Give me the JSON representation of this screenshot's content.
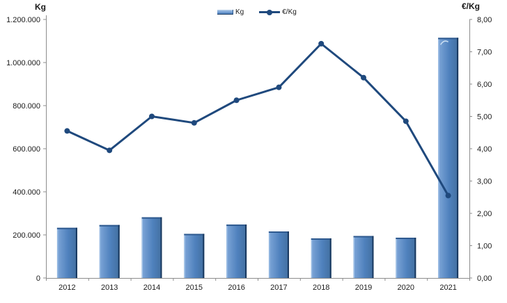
{
  "chart_data": {
    "type": "bar+line",
    "categories": [
      "2012",
      "2013",
      "2014",
      "2015",
      "2016",
      "2017",
      "2018",
      "2019",
      "2020",
      "2021"
    ],
    "series": [
      {
        "name": "Kg",
        "type": "bar",
        "axis": "left",
        "values": [
          233000,
          246000,
          282000,
          205000,
          248000,
          216000,
          184000,
          195000,
          187000,
          1115000
        ]
      },
      {
        "name": "€/Kg",
        "type": "line",
        "axis": "right",
        "values": [
          4.55,
          3.95,
          5.0,
          4.8,
          5.5,
          5.9,
          7.25,
          6.2,
          4.85,
          2.55
        ]
      }
    ],
    "left_axis": {
      "title": "Kg",
      "min": 0,
      "max": 1200000,
      "step": 200000,
      "tick_labels": [
        "0",
        "200.000",
        "400.000",
        "600.000",
        "800.000",
        "1.000.000",
        "1.200.000"
      ]
    },
    "right_axis": {
      "title": "€/Kg",
      "min": 0,
      "max": 8,
      "step": 1,
      "tick_labels": [
        "0,00",
        "1,00",
        "2,00",
        "3,00",
        "4,00",
        "5,00",
        "6,00",
        "7,00",
        "8,00"
      ]
    },
    "legend": {
      "position": "top-center",
      "items": [
        {
          "label": "Kg",
          "swatch": "bar"
        },
        {
          "label": "€/Kg",
          "swatch": "line-marker"
        }
      ]
    },
    "grid": false,
    "colors": {
      "bar_fill": "#4f81bd",
      "bar_fill_light": "#7ea6d8",
      "bar_fill_dark": "#426f9f",
      "bar_edge_dark": "#17375e",
      "bar_edge_top": "#2f5a8f",
      "bar_edge_light": "#a3c4e8",
      "bar_highlight_mark": "#c9def2",
      "line": "#1f497d",
      "axis": "#8c8c8c",
      "text": "#1a1a1a"
    }
  }
}
